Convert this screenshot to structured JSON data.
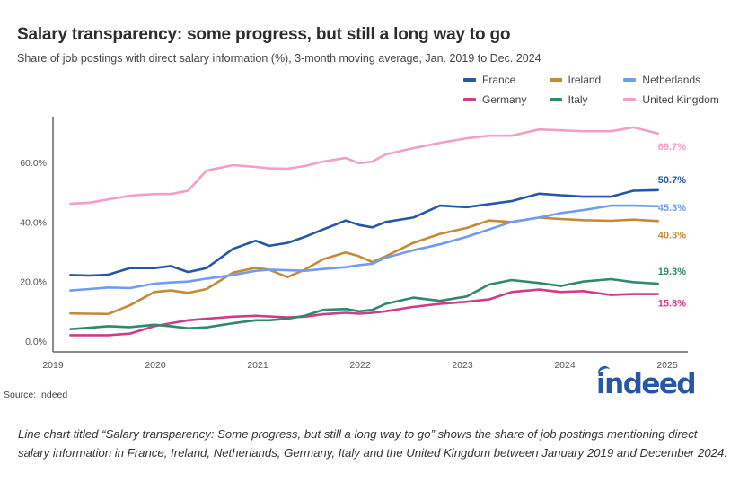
{
  "chart_data": {
    "type": "line",
    "title": "Salary transparency: some progress, but still a long way to go",
    "subtitle": "Share of job postings with direct salary information (%), 3-month moving average, Jan. 2019 to Dec. 2024",
    "xlabel": "",
    "ylabel": "",
    "xlim": [
      2019,
      2025
    ],
    "ylim": [
      -2,
      75
    ],
    "x_ticks": [
      "2019",
      "2020",
      "2021",
      "2022",
      "2023",
      "2024",
      "2025"
    ],
    "y_ticks": [
      "0.0%",
      "20.0%",
      "40.0%",
      "60.0%"
    ],
    "y_tick_values": [
      0,
      20,
      40,
      60
    ],
    "grid": false,
    "legend_position": "top-right",
    "x": [
      2019.17,
      2019.36,
      2019.54,
      2019.75,
      2019.99,
      2020.15,
      2020.32,
      2020.5,
      2020.76,
      2020.98,
      2021.11,
      2021.29,
      2021.46,
      2021.64,
      2021.86,
      2021.99,
      2022.12,
      2022.25,
      2022.52,
      2022.78,
      2023.04,
      2023.26,
      2023.48,
      2023.75,
      2023.96,
      2024.18,
      2024.45,
      2024.67,
      2024.91
    ],
    "series": [
      {
        "name": "France",
        "color": "#2557a7",
        "end_label": "50.7%",
        "values": [
          22.2,
          22,
          22.3,
          24.5,
          24.5,
          25.2,
          23.2,
          24.5,
          31,
          33.7,
          32,
          33,
          35,
          37.5,
          40.5,
          39,
          38.2,
          40,
          41.5,
          45.5,
          45,
          46,
          47,
          49.5,
          49,
          48.5,
          48.5,
          50.5,
          50.7
        ]
      },
      {
        "name": "Ireland",
        "color": "#c48a35",
        "end_label": "40.3%",
        "values": [
          9.3,
          9.2,
          9.1,
          12,
          16.5,
          17,
          16.2,
          17.5,
          23,
          24.6,
          24,
          21.5,
          24,
          27.5,
          29.8,
          28.5,
          26.5,
          28.5,
          33,
          36,
          38,
          40.5,
          40,
          41.5,
          41,
          40.6,
          40.4,
          40.8,
          40.3
        ]
      },
      {
        "name": "Netherlands",
        "color": "#6f9cf0",
        "end_label": "45.3%",
        "values": [
          17,
          17.5,
          18,
          17.8,
          19.3,
          19.7,
          20,
          21,
          22.2,
          23.6,
          24,
          23.8,
          23.6,
          24.2,
          24.8,
          25.5,
          26,
          28,
          30.5,
          32.5,
          35,
          37.5,
          40,
          41.5,
          43,
          44,
          45.5,
          45.5,
          45.3
        ]
      },
      {
        "name": "Germany",
        "color": "#cc3d8c",
        "end_label": "15.8%",
        "values": [
          2,
          2,
          2,
          2.5,
          5,
          6,
          7,
          7.5,
          8.2,
          8.5,
          8.3,
          8,
          8.2,
          9,
          9.5,
          9.2,
          9.5,
          10,
          11.5,
          12.5,
          13.2,
          14,
          16.5,
          17.3,
          16.5,
          16.8,
          15.5,
          15.8,
          15.8
        ]
      },
      {
        "name": "Italy",
        "color": "#2e8a6a",
        "end_label": "19.3%",
        "values": [
          4,
          4.5,
          5,
          4.7,
          5.5,
          5,
          4.3,
          4.6,
          6,
          7,
          7,
          7.5,
          8.5,
          10.5,
          10.8,
          10,
          10.5,
          12.5,
          14.6,
          13.5,
          15,
          19,
          20.5,
          19.5,
          18.5,
          20,
          20.8,
          19.8,
          19.3
        ]
      },
      {
        "name": "United Kingdom",
        "color": "#f29ec8",
        "end_label": "69.7%",
        "values": [
          46.1,
          46.5,
          47.6,
          48.8,
          49.4,
          49.4,
          50.5,
          57.3,
          59.1,
          58.5,
          58,
          57.9,
          58.8,
          60.3,
          61.5,
          59.7,
          60.3,
          62.7,
          64.8,
          66.6,
          68.1,
          69,
          69,
          71.1,
          70.8,
          70.5,
          70.5,
          71.8,
          69.7
        ]
      }
    ]
  },
  "source": "Source: Indeed",
  "logo_text": "indeed",
  "caption": "Line chart titled “Salary transparency: Some progress, but still a long way to go” shows the share of job postings mentioning direct salary information in France, Ireland, Netherlands, Germany, Italy and the United Kingdom between January 2019 and December 2024."
}
